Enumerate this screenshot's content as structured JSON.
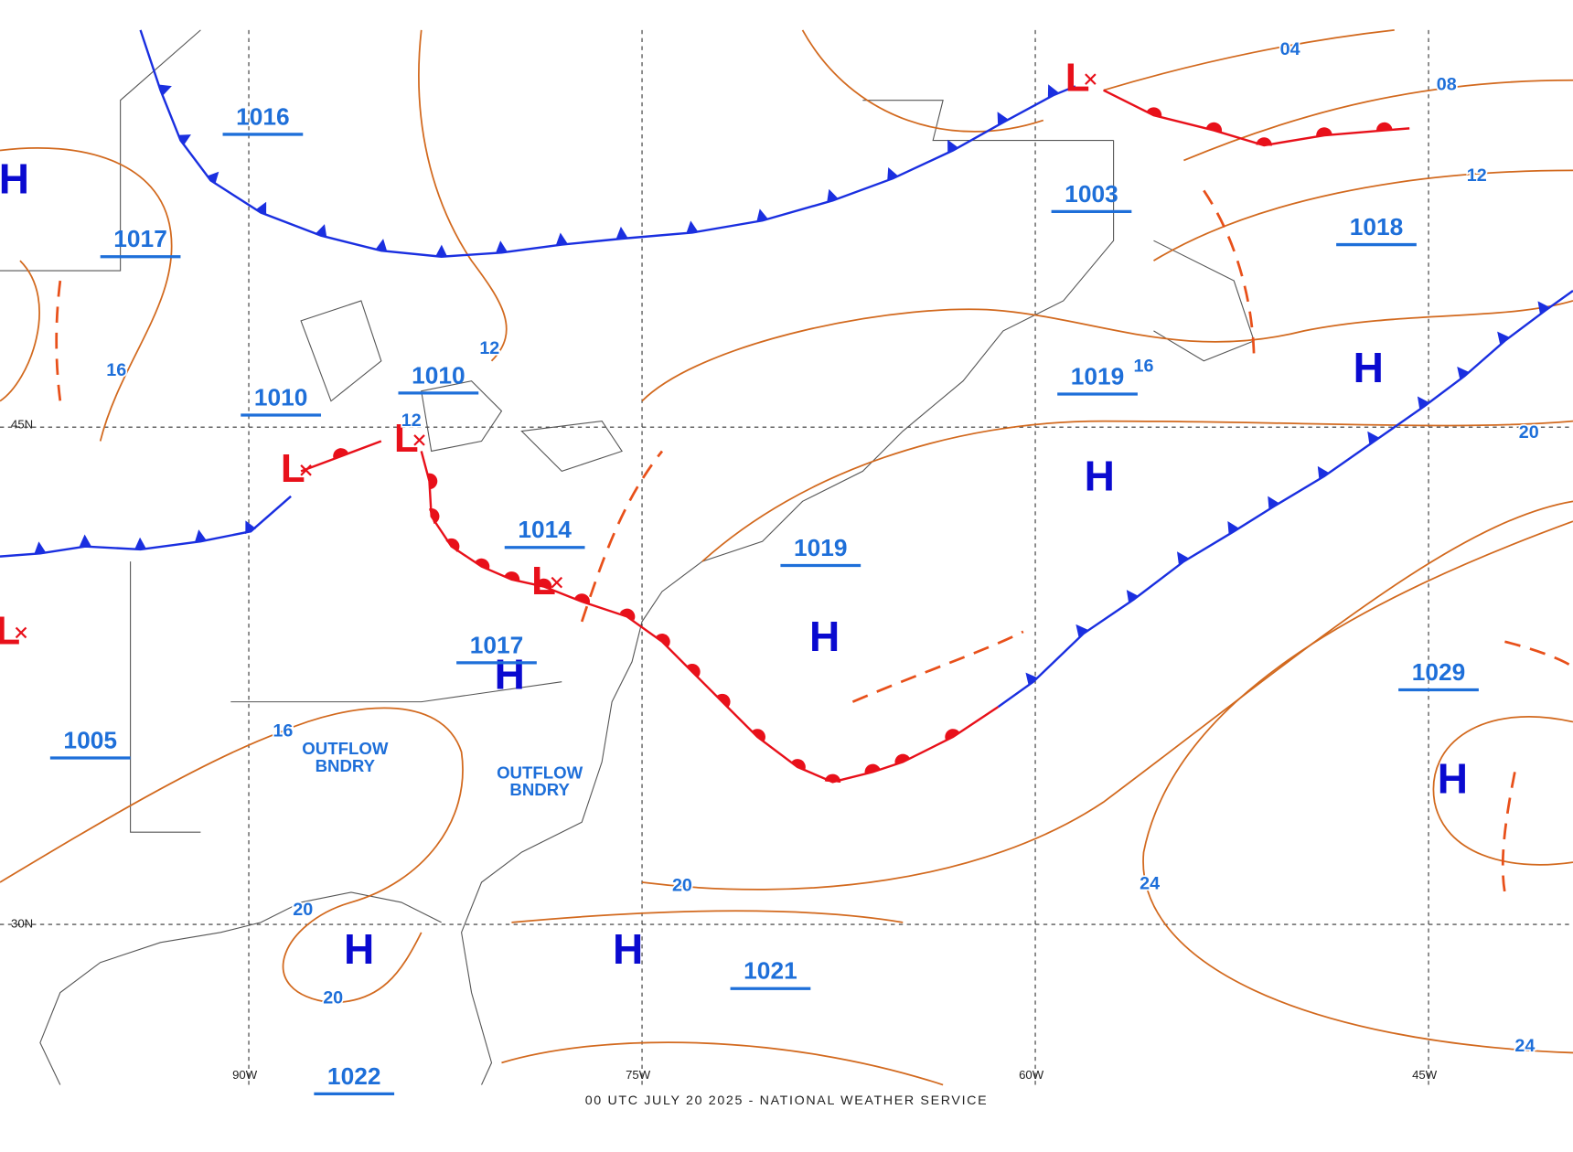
{
  "map": {
    "footer": "00 UTC JULY 20 2025 - NATIONAL WEATHER SERVICE",
    "latitude_labels": [
      "45N",
      "30N"
    ],
    "longitude_labels": [
      "90W",
      "75W",
      "60W",
      "45W"
    ],
    "high_centers": [
      "H",
      "H",
      "H",
      "H",
      "H",
      "H",
      "H",
      "H"
    ],
    "low_centers": [
      "L",
      "L",
      "L",
      "L",
      "L"
    ],
    "pressure_labels": [
      "1016",
      "1017",
      "1010",
      "1010",
      "1014",
      "1017",
      "1005",
      "1019",
      "1003",
      "1019",
      "1018",
      "1029",
      "1021",
      "1022"
    ],
    "isobar_labels": [
      "04",
      "08",
      "12",
      "16",
      "20",
      "24",
      "24",
      "20",
      "20",
      "20",
      "16",
      "16",
      "12",
      "12"
    ],
    "annotations": [
      {
        "line1": "OUTFLOW",
        "line2": "BNDRY"
      },
      {
        "line1": "OUTFLOW",
        "line2": "BNDRY"
      }
    ]
  }
}
